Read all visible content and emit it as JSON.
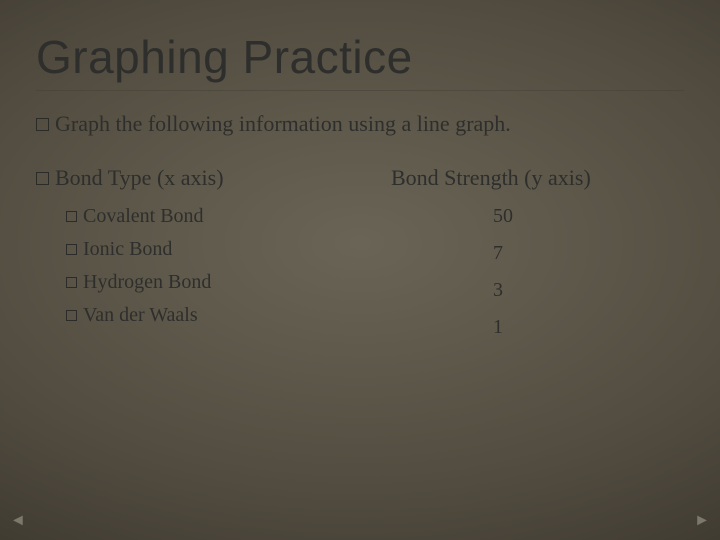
{
  "background": {
    "gradient_center": "#6a6456",
    "gradient_edge": "#1a1712",
    "type": "radial"
  },
  "title": {
    "text": "Graphing Practice",
    "font_family": "Segoe UI Light",
    "font_size_pt": 34,
    "font_weight": 300,
    "color": "#2e2e2c"
  },
  "rule_color": "#46413799",
  "instruction": {
    "bullet": "square-outline",
    "text": "Graph the following information using a line graph.",
    "font_size_pt": 17,
    "color": "#2e2e2c"
  },
  "body_font_family": "Georgia",
  "columns": {
    "left_header": {
      "bullet": "square-outline",
      "text": "Bond Type (x axis)"
    },
    "right_header": {
      "text": "Bond Strength (y axis)"
    },
    "header_font_size_pt": 17,
    "item_font_size_pt": 15,
    "item_bullet": "square-outline-small",
    "rows": [
      {
        "label": "Covalent Bond",
        "value": "50"
      },
      {
        "label": "Ionic Bond",
        "value": "7"
      },
      {
        "label": "Hydrogen Bond",
        "value": "3"
      },
      {
        "label": "Van der Waals",
        "value": "1"
      }
    ]
  },
  "nav": {
    "prev_glyph": "◄",
    "next_glyph": "►",
    "color": "rgba(230,225,210,0.35)"
  }
}
